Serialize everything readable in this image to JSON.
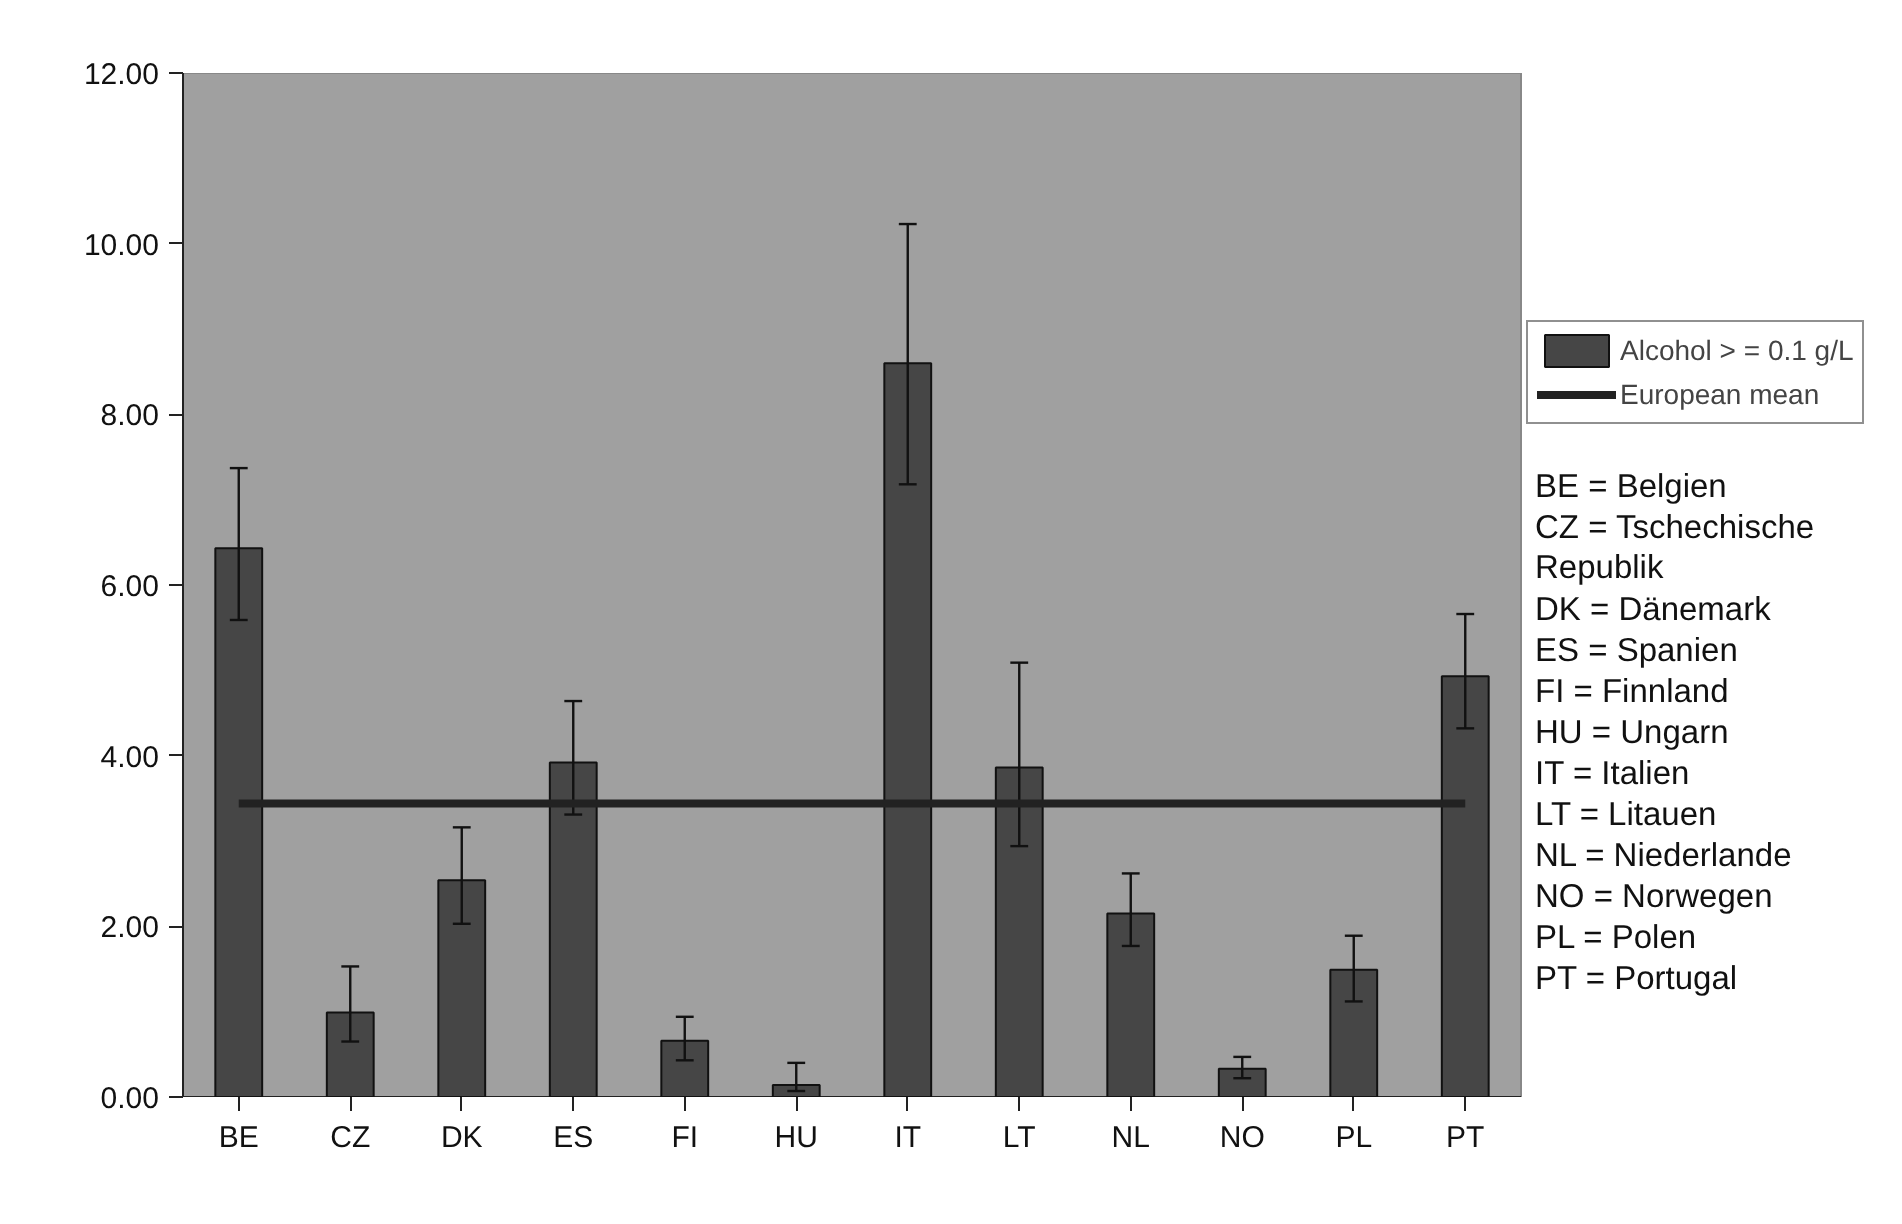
{
  "chart_data": {
    "type": "bar",
    "categories": [
      "BE",
      "CZ",
      "DK",
      "ES",
      "FI",
      "HU",
      "IT",
      "LT",
      "NL",
      "NO",
      "PL",
      "PT"
    ],
    "series": [
      {
        "name": "Alcohol > = 0.1 g/L",
        "color": "#464646",
        "values": [
          6.43,
          0.99,
          2.54,
          3.92,
          0.66,
          0.14,
          8.6,
          3.86,
          2.15,
          0.33,
          1.49,
          4.93
        ],
        "errors": [
          [
            5.59,
            7.37
          ],
          [
            0.65,
            1.53
          ],
          [
            2.03,
            3.16
          ],
          [
            3.31,
            4.64
          ],
          [
            0.43,
            0.94
          ],
          [
            0.07,
            0.4
          ],
          [
            7.18,
            10.23
          ],
          [
            2.94,
            5.09
          ],
          [
            1.77,
            2.62
          ],
          [
            0.22,
            0.47
          ],
          [
            1.12,
            1.89
          ],
          [
            4.32,
            5.66
          ]
        ]
      }
    ],
    "ref_lines": [
      {
        "axis": "y",
        "value": 3.44,
        "label": "European mean",
        "color": "#222222"
      }
    ],
    "ylim": [
      0,
      12
    ],
    "yticks": [
      {
        "value": 0,
        "label": "0.00"
      },
      {
        "value": 2,
        "label": "2.00"
      },
      {
        "value": 4,
        "label": "4.00"
      },
      {
        "value": 6,
        "label": "6.00"
      },
      {
        "value": 8,
        "label": "8.00"
      },
      {
        "value": 10,
        "label": "10.00"
      },
      {
        "value": 12,
        "label": "12.00"
      }
    ],
    "legend": "right",
    "annotations": [
      "BE = Belgien",
      "CZ = Tschechische\n        Republik",
      "DK = Dänemark",
      "ES = Spanien",
      "FI  = Finnland",
      "HU = Ungarn",
      "IT  = Italien",
      "LT = Litauen",
      "NL = Niederlande",
      "NO = Norwegen",
      "PL = Polen",
      "PT = Portugal"
    ]
  }
}
